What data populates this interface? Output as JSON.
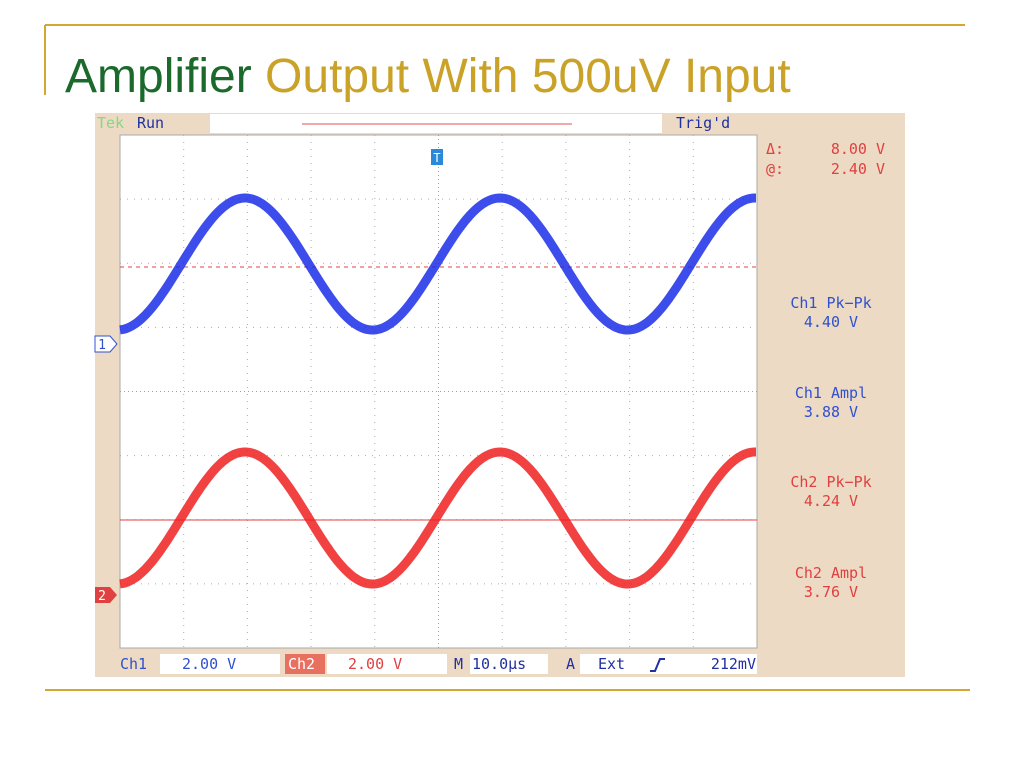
{
  "title": {
    "part1": "Amplifier",
    "part2": "Output With 500uV Input"
  },
  "scope": {
    "top_bar": {
      "brand": "Tek",
      "status": "Run",
      "trigger_state": "Trig'd",
      "trigger_marker": "T"
    },
    "cursor": {
      "delta_label": "Δ:",
      "delta_value": "8.00 V",
      "at_label": "@:",
      "at_value": "2.40 V"
    },
    "measurements": [
      {
        "label": "Ch1 Pk−Pk",
        "value": "4.40 V"
      },
      {
        "label": "Ch1 Ampl",
        "value": "3.88 V"
      },
      {
        "label": "Ch2 Pk−Pk",
        "value": "4.24 V"
      },
      {
        "label": "Ch2 Ampl",
        "value": "3.76 V"
      }
    ],
    "markers": {
      "ch1": "1",
      "ch2": "2"
    },
    "bottom_bar": {
      "ch1_label": "Ch1",
      "ch1_scale": "2.00 V",
      "ch2_label": "Ch2",
      "ch2_scale": "2.00 V",
      "timebase_label": "M",
      "timebase": "10.0µs",
      "trigger_label": "A",
      "trigger_source": "Ext",
      "trigger_level": "212mV"
    }
  }
}
